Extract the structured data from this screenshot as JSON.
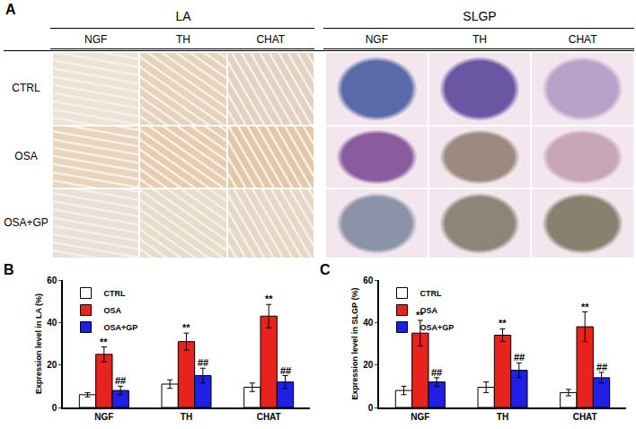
{
  "figure": {
    "panel_a": {
      "label": "A",
      "groups": [
        {
          "title": "LA",
          "columns": [
            "NGF",
            "TH",
            "CHAT"
          ]
        },
        {
          "title": "SLGP",
          "columns": [
            "NGF",
            "TH",
            "CHAT"
          ]
        }
      ],
      "rows": [
        "CTRL",
        "OSA",
        "OSA+GP"
      ]
    },
    "chart_panels": [
      "B",
      "C"
    ]
  },
  "chart_data": [
    {
      "type": "bar",
      "y_label": "Expression level in LA (%)",
      "categories": [
        "NGF",
        "TH",
        "CHAT"
      ],
      "series": [
        {
          "name": "CTRL",
          "color": "#ffffff",
          "values": [
            6,
            11,
            9.5
          ],
          "errors": [
            1,
            2,
            2
          ]
        },
        {
          "name": "OSA",
          "color": "#e8231e",
          "values": [
            25,
            31,
            43
          ],
          "errors": [
            3.5,
            4,
            5.5
          ]
        },
        {
          "name": "OSA+GP",
          "color": "#1f1fe6",
          "values": [
            8,
            15,
            12
          ],
          "errors": [
            2,
            3.5,
            3
          ]
        }
      ],
      "ylim": [
        0,
        60
      ],
      "yticks": [
        0,
        20,
        40,
        60
      ],
      "legend": "upper left",
      "annotations": [
        {
          "text": "**",
          "category": "NGF",
          "series": "OSA"
        },
        {
          "text": "**",
          "category": "TH",
          "series": "OSA"
        },
        {
          "text": "**",
          "category": "CHAT",
          "series": "OSA"
        },
        {
          "text": "##",
          "category": "NGF",
          "series": "OSA+GP"
        },
        {
          "text": "##",
          "category": "TH",
          "series": "OSA+GP"
        },
        {
          "text": "##",
          "category": "CHAT",
          "series": "OSA+GP"
        }
      ]
    },
    {
      "type": "bar",
      "y_label": "Expression level in SLGP (%)",
      "categories": [
        "NGF",
        "TH",
        "CHAT"
      ],
      "series": [
        {
          "name": "CTRL",
          "color": "#ffffff",
          "values": [
            8,
            9.5,
            7
          ],
          "errors": [
            2,
            2.5,
            1.5
          ]
        },
        {
          "name": "OSA",
          "color": "#e8231e",
          "values": [
            35,
            34,
            38
          ],
          "errors": [
            6,
            3,
            7
          ]
        },
        {
          "name": "OSA+GP",
          "color": "#1f1fe6",
          "values": [
            12,
            17.5,
            14
          ],
          "errors": [
            2,
            3.5,
            2.5
          ]
        }
      ],
      "ylim": [
        0,
        60
      ],
      "yticks": [
        0,
        20,
        40,
        60
      ],
      "legend": "upper left",
      "annotations": [
        {
          "text": "**",
          "category": "NGF",
          "series": "OSA"
        },
        {
          "text": "**",
          "category": "TH",
          "series": "OSA"
        },
        {
          "text": "**",
          "category": "CHAT",
          "series": "OSA"
        },
        {
          "text": "##",
          "category": "NGF",
          "series": "OSA+GP"
        },
        {
          "text": "##",
          "category": "TH",
          "series": "OSA+GP"
        },
        {
          "text": "##",
          "category": "CHAT",
          "series": "OSA+GP"
        }
      ]
    }
  ]
}
